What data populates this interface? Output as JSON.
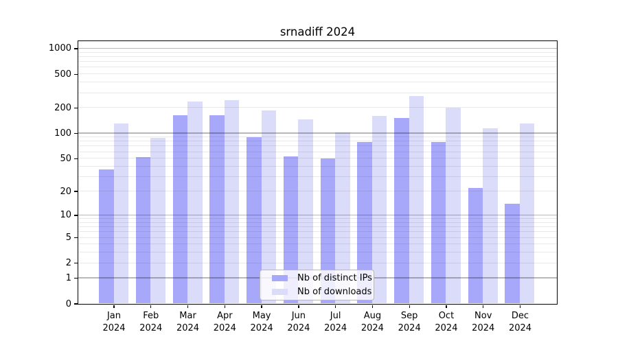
{
  "chart_data": {
    "type": "bar",
    "title": "srnadiff 2024",
    "categories": [
      "Jan 2024",
      "Feb 2024",
      "Mar 2024",
      "Apr 2024",
      "May 2024",
      "Jun 2024",
      "Jul 2024",
      "Aug 2024",
      "Sep 2024",
      "Oct 2024",
      "Nov 2024",
      "Dec 2024"
    ],
    "series": [
      {
        "name": "Nb of distinct IPs",
        "color": "#a8a8fa",
        "values": [
          37,
          52,
          163,
          163,
          90,
          53,
          50,
          78,
          150,
          78,
          22,
          14
        ]
      },
      {
        "name": "Nb of downloads",
        "color": "#dbdbfa",
        "values": [
          130,
          87,
          234,
          243,
          185,
          146,
          101,
          160,
          272,
          201,
          114,
          129
        ]
      }
    ],
    "xlabel": "",
    "ylabel": "",
    "y_scale": "log10(1+x)",
    "ylim": [
      0,
      1225
    ],
    "y_ticks": [
      0,
      1,
      2,
      5,
      10,
      20,
      50,
      100,
      200,
      500,
      1000
    ],
    "y_major_gridlines": [
      1,
      10,
      100,
      1000
    ],
    "grid": "horizontal",
    "legend_position": "bottom-center",
    "frame": "full-box"
  }
}
